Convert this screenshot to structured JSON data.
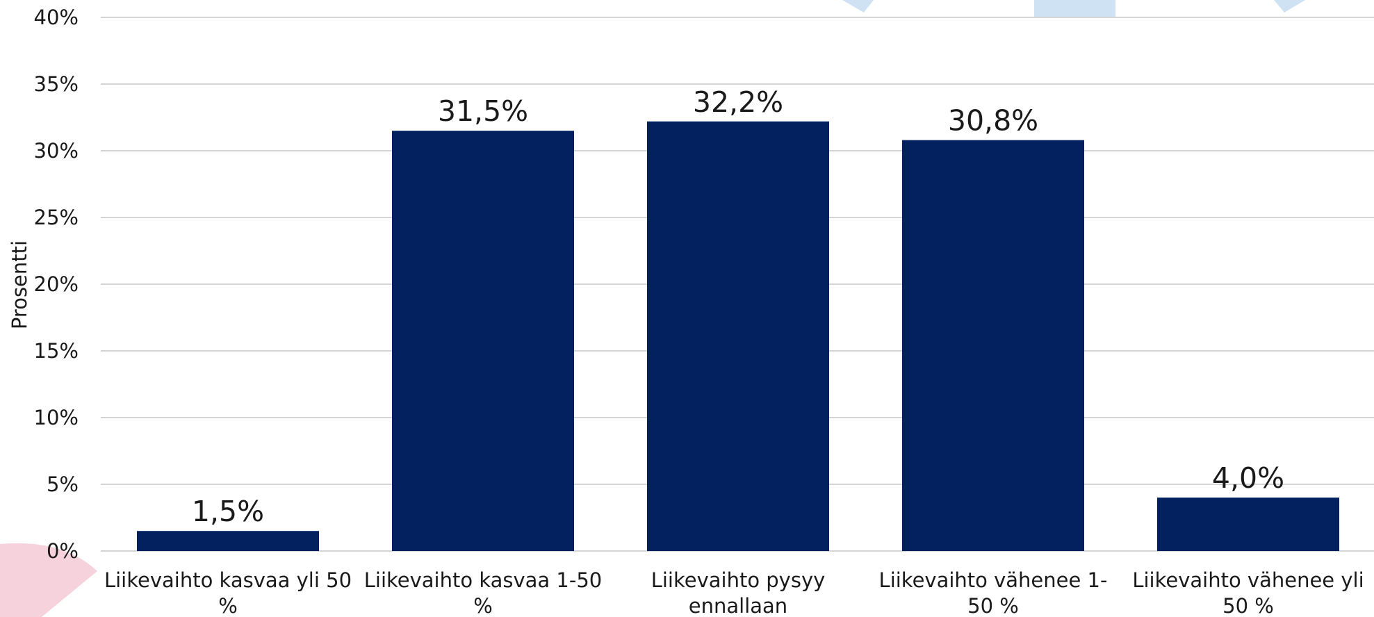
{
  "chart_data": {
    "type": "bar",
    "categories": [
      [
        "Liikevaihto kasvaa yli 50",
        "%"
      ],
      [
        "Liikevaihto kasvaa 1-50",
        "%"
      ],
      [
        "Liikevaihto pysyy",
        "ennallaan"
      ],
      [
        "Liikevaihto vähenee 1-",
        "50 %"
      ],
      [
        "Liikevaihto vähenee yli",
        "50 %"
      ]
    ],
    "values": [
      1.5,
      31.5,
      32.2,
      30.8,
      4.0
    ],
    "data_labels": [
      "1,5%",
      "31,5%",
      "32,2%",
      "30,8%",
      "4,0%"
    ],
    "ylabel": "Prosentti",
    "ylim": [
      0,
      40
    ],
    "yticks": [
      {
        "value": 0,
        "label": "0%"
      },
      {
        "value": 5,
        "label": "5%"
      },
      {
        "value": 10,
        "label": "10%"
      },
      {
        "value": 15,
        "label": "15%"
      },
      {
        "value": 20,
        "label": "20%"
      },
      {
        "value": 25,
        "label": "25%"
      },
      {
        "value": 30,
        "label": "30%"
      },
      {
        "value": 35,
        "label": "35%"
      },
      {
        "value": 40,
        "label": "40%"
      }
    ],
    "grid": true,
    "colors": {
      "bar": "#03215e",
      "grid": "#d4d4d4",
      "decor_blue": "#cfe2f3",
      "decor_pink": "#f6d3dc"
    }
  }
}
